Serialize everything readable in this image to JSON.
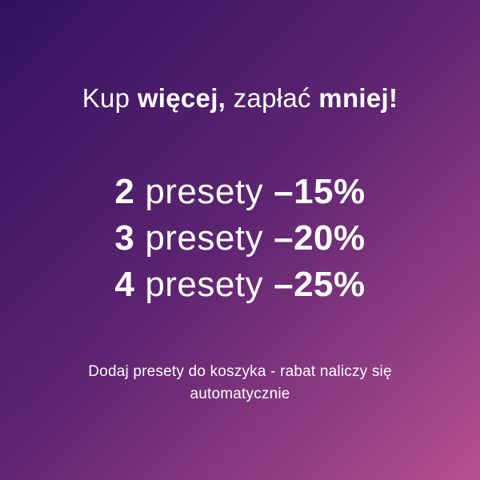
{
  "theme": {
    "gradient_start": "#31125f",
    "gradient_end": "#b5508f",
    "text_color": "#ffffff"
  },
  "headline": {
    "part1_regular": "Kup ",
    "part2_bold": "więcej,",
    "part3_regular": " zapłać ",
    "part4_bold": "mniej!"
  },
  "tiers": [
    {
      "quantity": "2",
      "unit": "presety",
      "discount": "–15%"
    },
    {
      "quantity": "3",
      "unit": "presety",
      "discount": "–20%"
    },
    {
      "quantity": "4",
      "unit": "presety",
      "discount": "–25%"
    }
  ],
  "footer": {
    "note": "Dodaj presety do koszyka - rabat naliczy się automatycznie"
  }
}
